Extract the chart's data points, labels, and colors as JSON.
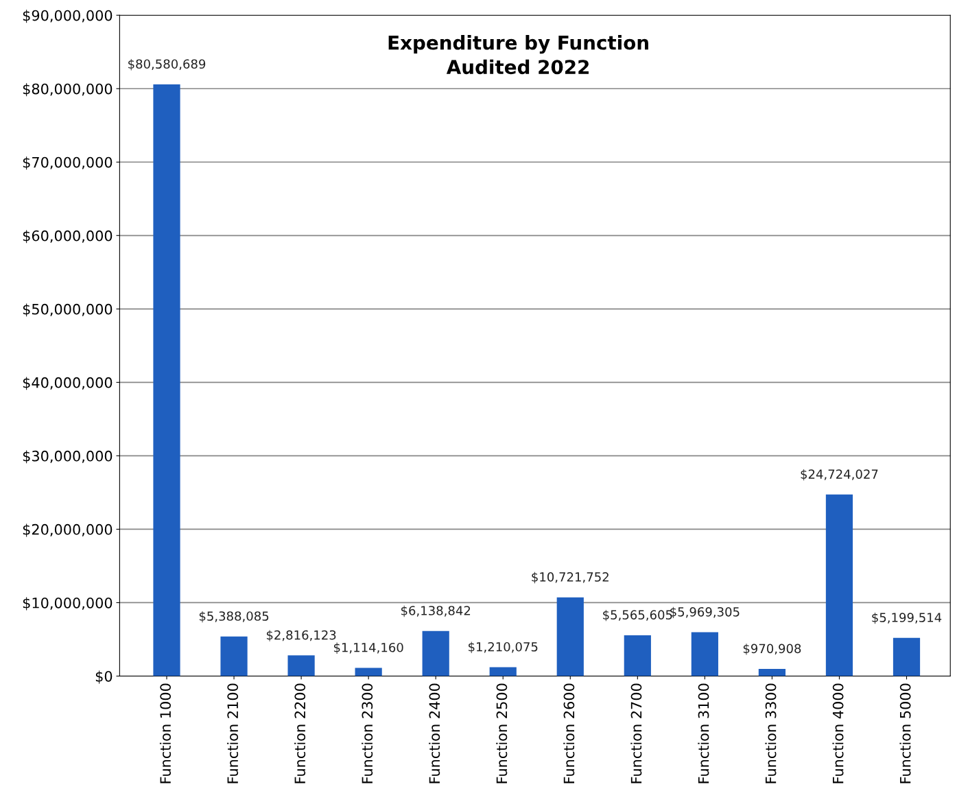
{
  "chart_data": {
    "type": "bar",
    "title": "Expenditure by Function\nAudited 2022",
    "categories": [
      "Function 1000",
      "Function 2100",
      "Function 2200",
      "Function 2300",
      "Function 2400",
      "Function 2500",
      "Function 2600",
      "Function 2700",
      "Function 3100",
      "Function 3300",
      "Function 4000",
      "Function 5000"
    ],
    "values": [
      80580689,
      5388085,
      2816123,
      1114160,
      6138842,
      1210075,
      10721752,
      5565605,
      5969305,
      970908,
      24724027,
      5199514
    ],
    "value_labels": [
      "$80,580,689",
      "$5,388,085",
      "$2,816,123",
      "$1,114,160",
      "$6,138,842",
      "$1,210,075",
      "$10,721,752",
      "$5,565,605",
      "$5,969,305",
      "$970,908",
      "$24,724,027",
      "$5,199,514"
    ],
    "color": "#1f5fbf",
    "ylim": [
      0,
      90000000
    ],
    "yticks": [
      {
        "value": 0,
        "label": "$0"
      },
      {
        "value": 10000000,
        "label": "$10,000,000"
      },
      {
        "value": 20000000,
        "label": "$20,000,000"
      },
      {
        "value": 30000000,
        "label": "$30,000,000"
      },
      {
        "value": 40000000,
        "label": "$40,000,000"
      },
      {
        "value": 50000000,
        "label": "$50,000,000"
      },
      {
        "value": 60000000,
        "label": "$60,000,000"
      },
      {
        "value": 70000000,
        "label": "$70,000,000"
      },
      {
        "value": 80000000,
        "label": "$80,000,000"
      },
      {
        "value": 90000000,
        "label": "$90,000,000"
      }
    ],
    "grid": "y",
    "legend": false
  }
}
